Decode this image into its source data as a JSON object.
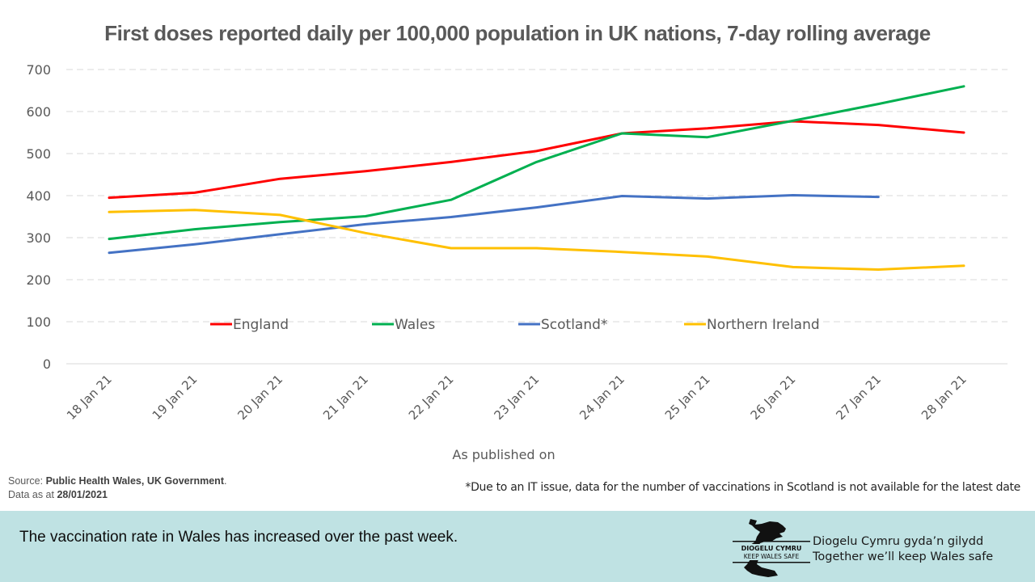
{
  "chart_data": {
    "type": "line",
    "title": "First doses reported daily per 100,000 population in UK nations, 7-day rolling average",
    "xlabel": "As published on",
    "ylabel": "",
    "ylim": [
      0,
      700
    ],
    "yticks": [
      0,
      100,
      200,
      300,
      400,
      500,
      600,
      700
    ],
    "ytick_labels": [
      "0",
      "100",
      "200",
      "300",
      "400",
      "500",
      "600",
      "700"
    ],
    "grid": "horizontal dashed",
    "legend_position": "inside-lower-center",
    "categories": [
      "18 Jan 21",
      "19 Jan 21",
      "20 Jan 21",
      "21 Jan 21",
      "22 Jan 21",
      "23 Jan 21",
      "24 Jan 21",
      "25 Jan 21",
      "26 Jan 21",
      "27 Jan 21",
      "28 Jan 21"
    ],
    "series": [
      {
        "name": "England",
        "color": "#ff0000",
        "values": [
          395,
          407,
          440,
          458,
          480,
          506,
          548,
          560,
          577,
          568,
          550
        ]
      },
      {
        "name": "Wales",
        "color": "#00b050",
        "values": [
          297,
          320,
          337,
          351,
          390,
          480,
          548,
          539,
          578,
          618,
          660
        ]
      },
      {
        "name": "Scotland*",
        "color": "#4472c4",
        "values": [
          264,
          284,
          308,
          332,
          349,
          372,
          399,
          393,
          401,
          397,
          null
        ]
      },
      {
        "name": "Northern Ireland",
        "color": "#ffc000",
        "values": [
          361,
          366,
          354,
          311,
          275,
          275,
          266,
          255,
          230,
          224,
          233
        ]
      }
    ]
  },
  "source": {
    "prefix": "Source: ",
    "names": "Public Health Wales, UK Government",
    "suffix": ".",
    "date_prefix": "Data as at ",
    "date": "28/01/2021"
  },
  "footnote": "*Due to an IT issue, data for the number of vaccinations in Scotland is not available for the latest date",
  "banner": {
    "text": "The vaccination rate in Wales has increased over the past week.",
    "logo_line1": "DIOGELU CYMRU",
    "logo_line2": "KEEP WALES SAFE",
    "slogan_welsh": "Diogelu Cymru gyda’n gilydd",
    "slogan_english": "Together we’ll keep Wales safe",
    "background": "#bfe2e3"
  }
}
